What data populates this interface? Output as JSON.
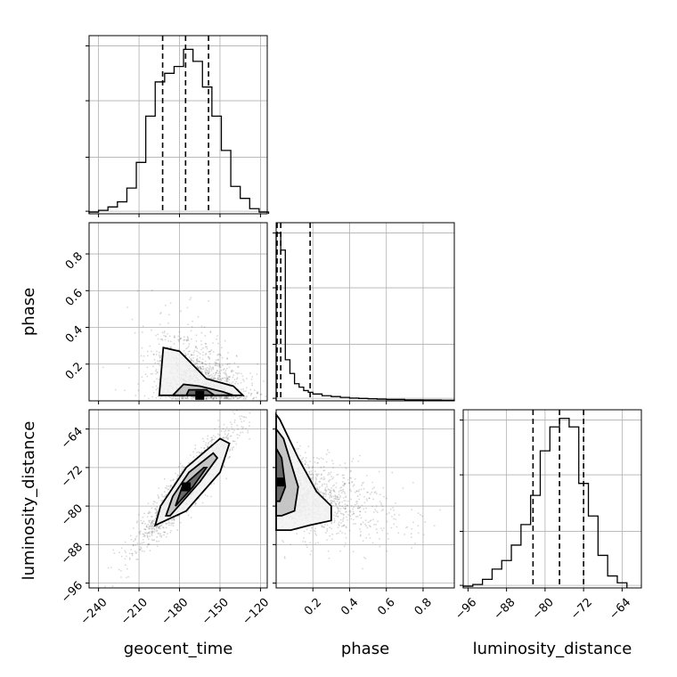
{
  "chart_data": {
    "type": "corner",
    "parameters": [
      "geocent_time",
      "phase",
      "luminosity_distance"
    ],
    "grid": true,
    "quantile_lines": "dashed",
    "histograms": [
      {
        "parameter": "geocent_time",
        "bin_edges": [
          -247,
          -240,
          -233,
          -226,
          -219,
          -212,
          -205,
          -198,
          -191,
          -184,
          -177,
          -170,
          -163,
          -156,
          -149,
          -142,
          -135,
          -128,
          -121,
          -114
        ],
        "counts": [
          0.01,
          0.02,
          0.04,
          0.07,
          0.15,
          0.3,
          0.57,
          0.77,
          0.82,
          0.86,
          0.96,
          0.89,
          0.74,
          0.57,
          0.37,
          0.16,
          0.09,
          0.03,
          0.01
        ],
        "quantiles": [
          -192.5,
          -175.5,
          -158.5
        ],
        "ylim": [
          0,
          1.04
        ]
      },
      {
        "parameter": "phase",
        "bin_edges": [
          0.0,
          0.025,
          0.05,
          0.075,
          0.1,
          0.125,
          0.15,
          0.175,
          0.2,
          0.25,
          0.3,
          0.35,
          0.4,
          0.45,
          0.5,
          0.55,
          0.6,
          0.7,
          0.8,
          0.9,
          0.97
        ],
        "counts": [
          0.98,
          0.88,
          0.24,
          0.16,
          0.1,
          0.08,
          0.06,
          0.05,
          0.04,
          0.03,
          0.025,
          0.02,
          0.016,
          0.014,
          0.012,
          0.01,
          0.008,
          0.006,
          0.005,
          0.004
        ],
        "quantiles": [
          0.005,
          0.025,
          0.185
        ],
        "ylim": [
          0,
          1.04
        ]
      },
      {
        "parameter": "luminosity_distance",
        "bin_edges": [
          -97,
          -95,
          -93,
          -91,
          -89,
          -87,
          -85,
          -83,
          -81,
          -79,
          -77,
          -75,
          -73,
          -71,
          -69,
          -67,
          -65,
          -63
        ],
        "counts": [
          0.01,
          0.02,
          0.05,
          0.11,
          0.16,
          0.25,
          0.37,
          0.54,
          0.8,
          0.94,
          0.99,
          0.94,
          0.61,
          0.42,
          0.19,
          0.07,
          0.03
        ],
        "quantiles": [
          -82.5,
          -77.0,
          -72.0
        ],
        "ylim": [
          0,
          1.04
        ]
      }
    ],
    "scatter_panels": [
      {
        "x": "geocent_time",
        "y": "phase",
        "correlation": "negative",
        "contour_levels": [
          {
            "x": [
              -195,
              -192,
              -180,
              -160,
              -140,
              -133,
              -150,
              -175,
              -195
            ],
            "y": [
              0.03,
              0.29,
              0.27,
              0.12,
              0.08,
              0.03,
              0.03,
              0.03,
              0.03
            ]
          },
          {
            "x": [
              -185,
              -177,
              -165,
              -148,
              -140,
              -150,
              -185
            ],
            "y": [
              0.03,
              0.09,
              0.08,
              0.05,
              0.03,
              0.03,
              0.03
            ]
          },
          {
            "x": [
              -175,
              -173,
              -160,
              -154,
              -160,
              -175
            ],
            "y": [
              0.03,
              0.06,
              0.06,
              0.03,
              0.03,
              0.03
            ]
          }
        ],
        "density_peak": {
          "x": -165,
          "y": 0.03
        }
      },
      {
        "x": "geocent_time",
        "y": "luminosity_distance",
        "correlation": "positive",
        "contour_levels": [
          {
            "x": [
              -198,
              -194,
              -175,
              -150,
              -143,
              -150,
              -175,
              -198
            ],
            "y": [
              -84,
              -80,
              -72,
              -66,
              -67,
              -73,
              -81,
              -84
            ]
          },
          {
            "x": [
              -190,
              -185,
              -173,
              -155,
              -152,
              -165,
              -187,
              -190
            ],
            "y": [
              -82,
              -78,
              -73,
              -69,
              -70,
              -75,
              -82,
              -82
            ]
          },
          {
            "x": [
              -183,
              -178,
              -162,
              -160,
              -170,
              -183
            ],
            "y": [
              -80,
              -76,
              -72,
              -72,
              -76,
              -80
            ]
          }
        ],
        "density_peak": {
          "x": -175,
          "y": -76
        }
      },
      {
        "x": "phase",
        "y": "luminosity_distance",
        "correlation": "negative",
        "contour_levels": [
          {
            "x": [
              0.0,
              0.02,
              0.12,
              0.22,
              0.3,
              0.3,
              0.18,
              0.08,
              0.0
            ],
            "y": [
              -61,
              -62,
              -70,
              -77,
              -80,
              -83,
              -84,
              -85,
              -85
            ]
          },
          {
            "x": [
              0.0,
              0.04,
              0.12,
              0.1,
              0.03,
              0.0
            ],
            "y": [
              -64,
              -66,
              -76,
              -81,
              -82,
              -82
            ]
          },
          {
            "x": [
              0.0,
              0.03,
              0.05,
              0.02,
              0.0
            ],
            "y": [
              -68,
              -70,
              -76,
              -79,
              -79
            ]
          }
        ],
        "density_peak": {
          "x": 0.02,
          "y": -75
        }
      }
    ],
    "axes": {
      "geocent_time": {
        "label": "geocent_time",
        "lim": [
          -247,
          -115
        ],
        "ticks": [
          -240,
          -210,
          -180,
          -150,
          -120
        ],
        "tick_labels": [
          "−240",
          "−210",
          "−180",
          "−150",
          "−120"
        ]
      },
      "phase": {
        "label": "phase",
        "lim": [
          0.0,
          0.97
        ],
        "ticks": [
          0.2,
          0.4,
          0.6,
          0.8
        ],
        "tick_labels": [
          "0.2",
          "0.4",
          "0.6",
          "0.8"
        ]
      },
      "luminosity_distance": {
        "label": "luminosity_distance",
        "lim": [
          -97,
          -60
        ],
        "ticks": [
          -96,
          -88,
          -80,
          -72,
          -64
        ],
        "tick_labels": [
          "−96",
          "−88",
          "−80",
          "−72",
          "−64"
        ]
      }
    }
  }
}
